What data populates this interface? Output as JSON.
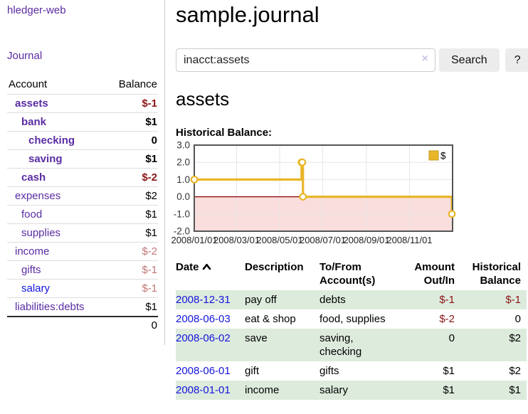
{
  "app": {
    "title": "hledger-web"
  },
  "sidebar": {
    "journal_link": "Journal",
    "accounts_header": {
      "account": "Account",
      "balance": "Balance"
    },
    "accounts": [
      {
        "name": "assets",
        "balance": "$-1",
        "indent": 1,
        "bold": true,
        "link": "purple",
        "tone": "strong-negative"
      },
      {
        "name": "bank",
        "balance": "$1",
        "indent": 2,
        "bold": true,
        "link": "purple",
        "tone": "normal"
      },
      {
        "name": "checking",
        "balance": "0",
        "indent": 3,
        "bold": true,
        "link": "purple",
        "tone": "normal"
      },
      {
        "name": "saving",
        "balance": "$1",
        "indent": 3,
        "bold": true,
        "link": "purple",
        "tone": "normal"
      },
      {
        "name": "cash",
        "balance": "$-2",
        "indent": 2,
        "bold": true,
        "link": "purple",
        "tone": "strong-negative"
      },
      {
        "name": "expenses",
        "balance": "$2",
        "indent": 1,
        "bold": false,
        "link": "purple",
        "tone": "normal"
      },
      {
        "name": "food",
        "balance": "$1",
        "indent": 2,
        "bold": false,
        "link": "purple",
        "tone": "normal"
      },
      {
        "name": "supplies",
        "balance": "$1",
        "indent": 2,
        "bold": false,
        "link": "purple",
        "tone": "normal"
      },
      {
        "name": "income",
        "balance": "$-2",
        "indent": 1,
        "bold": false,
        "link": "purple",
        "tone": "muted-negative"
      },
      {
        "name": "gifts",
        "balance": "$-1",
        "indent": 2,
        "bold": false,
        "link": "purple",
        "tone": "muted-negative"
      },
      {
        "name": "salary",
        "balance": "$-1",
        "indent": 2,
        "bold": false,
        "link": "blue",
        "tone": "muted-negative"
      },
      {
        "name": "liabilities:debts",
        "balance": "$1",
        "indent": 1,
        "bold": false,
        "link": "purple",
        "tone": "normal"
      }
    ],
    "total": "0"
  },
  "header": {
    "title": "sample.journal"
  },
  "search": {
    "value": "inacct:assets",
    "clear_icon": "×",
    "button": "Search",
    "help_button": "?"
  },
  "account_page": {
    "title": "assets",
    "chart_title": "Historical Balance:"
  },
  "chart_data": {
    "type": "line",
    "step": true,
    "title": "Historical Balance:",
    "series": [
      {
        "name": "$",
        "color": "#e9b62a",
        "points": [
          {
            "date": "2008-01-01",
            "value": 1
          },
          {
            "date": "2008-06-01",
            "value": 2
          },
          {
            "date": "2008-06-02",
            "value": 2
          },
          {
            "date": "2008-06-03",
            "value": 0
          },
          {
            "date": "2008-12-31",
            "value": -1
          }
        ]
      }
    ],
    "x_range": [
      "2008-01-01",
      "2009-01-01"
    ],
    "ylim": [
      -2,
      3
    ],
    "yticks": [
      "3.0",
      "2.0",
      "1.0",
      "0.0",
      "-1.0",
      "-2.0"
    ],
    "xticks": [
      "2008/01/01",
      "2008/03/01",
      "2008/05/01",
      "2008/07/01",
      "2008/09/01",
      "2008/11/01"
    ],
    "legend": {
      "label": "$",
      "position": "top-right"
    },
    "grid": true,
    "colors": {
      "negative_fill": "#fadddd",
      "zero_line": "#8b0000",
      "grid_line": "#e6e6e6",
      "border": "#555555",
      "marker_fill": "#ffffff"
    }
  },
  "register": {
    "columns": [
      "Date",
      "Description",
      "To/From Account(s)",
      "Amount Out/In",
      "Historical Balance"
    ],
    "rows": [
      {
        "date": "2008-12-31",
        "description": "pay off",
        "accounts": "debts",
        "amount": "$-1",
        "amount_tone": "negative",
        "balance": "$-1",
        "balance_tone": "negative"
      },
      {
        "date": "2008-06-03",
        "description": "eat & shop",
        "accounts": "food, supplies",
        "amount": "$-2",
        "amount_tone": "negative",
        "balance": "0",
        "balance_tone": "normal"
      },
      {
        "date": "2008-06-02",
        "description": "save",
        "accounts": "saving, checking",
        "amount": "0",
        "amount_tone": "normal",
        "balance": "$2",
        "balance_tone": "normal"
      },
      {
        "date": "2008-06-01",
        "description": "gift",
        "accounts": "gifts",
        "amount": "$1",
        "amount_tone": "normal",
        "balance": "$2",
        "balance_tone": "normal"
      },
      {
        "date": "2008-01-01",
        "description": "income",
        "accounts": "salary",
        "amount": "$1",
        "amount_tone": "normal",
        "balance": "$1",
        "balance_tone": "normal"
      }
    ]
  },
  "colors": {
    "accent_purple": "#5a2ca3",
    "link_blue": "#1414dc",
    "negative_strong": "#8b1414",
    "negative_muted": "#c17676",
    "row_green": "#ddebdd",
    "chart_line": "#e9b62a"
  }
}
